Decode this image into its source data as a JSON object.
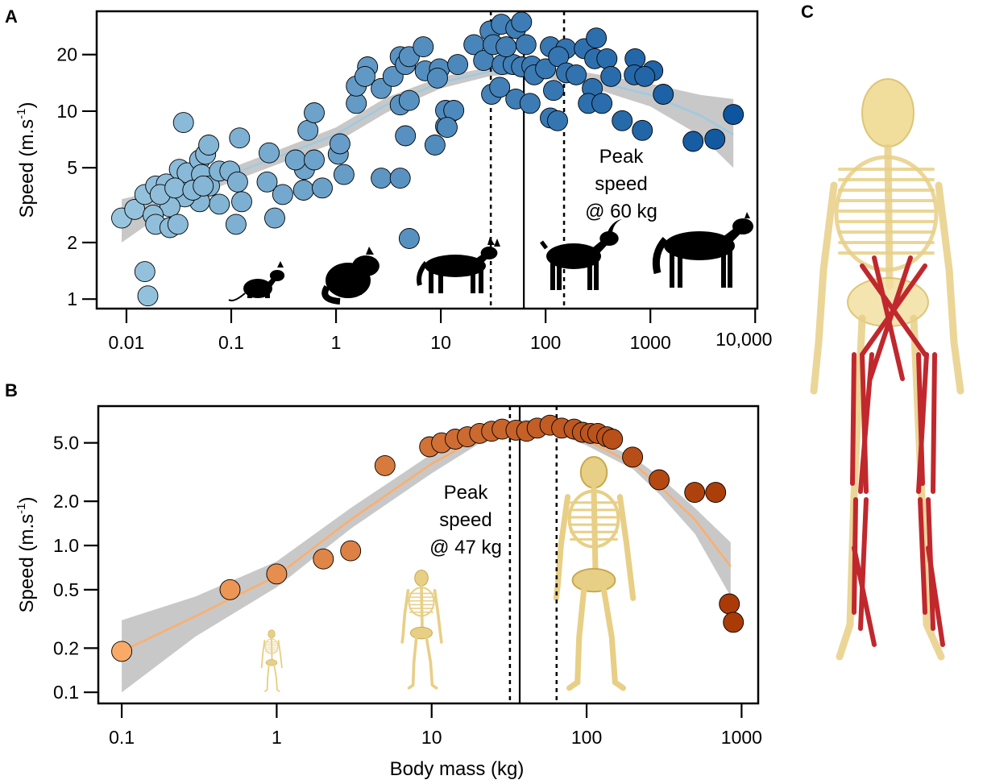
{
  "panel_labels": [
    "A",
    "B",
    "C"
  ],
  "colors": {
    "a_light": "#9ecae1",
    "a_dark": "#08519c",
    "a_fit": "#9ecae1",
    "b_light": "#fdae6b",
    "b_dark": "#a63603",
    "b_fit": "#fdae6b",
    "ci_band": "#c8c8c8",
    "bone": "#e8cf86",
    "muscle": "#c0282d",
    "silhouette": "#000000"
  },
  "chart_data": [
    {
      "panel": "A",
      "type": "scatter",
      "x_scale": "log",
      "y_scale": "log",
      "xlim": [
        0.0052,
        10500
      ],
      "ylim": [
        0.89,
        34
      ],
      "ylabel": "Speed (m.s",
      "ylabel_sup": "-1",
      "ylabel_end": ")",
      "xlabel": "",
      "grid": false,
      "x_ticks": [
        {
          "value": 0.01,
          "label": "0.01"
        },
        {
          "value": 0.1,
          "label": "0.1"
        },
        {
          "value": 1,
          "label": "1"
        },
        {
          "value": 10,
          "label": "10"
        },
        {
          "value": 100,
          "label": "100"
        },
        {
          "value": 1000,
          "label": "1000"
        },
        {
          "value": 10000,
          "label": "10,000"
        }
      ],
      "y_ticks": [
        {
          "value": 1,
          "label": "1"
        },
        {
          "value": 2,
          "label": "2"
        },
        {
          "value": 5,
          "label": "5"
        },
        {
          "value": 10,
          "label": "10"
        },
        {
          "value": 20,
          "label": "20"
        }
      ],
      "vlines": [
        {
          "value": 30,
          "style": "dotted"
        },
        {
          "value": 62,
          "style": "solid"
        },
        {
          "value": 150,
          "style": "dotted"
        }
      ],
      "annotation": [
        "Peak",
        "speed",
        "@ 60 kg"
      ],
      "icons": [
        "rat-silhouette",
        "chinchilla-silhouette",
        "coyote-silhouette",
        "goat-silhouette",
        "horse-silhouette"
      ],
      "fit": [
        [
          0.009,
          2.7
        ],
        [
          0.03,
          3.6
        ],
        [
          0.1,
          4.6
        ],
        [
          0.3,
          5.8
        ],
        [
          1,
          7.5
        ],
        [
          3,
          10.8
        ],
        [
          10,
          14.2
        ],
        [
          30,
          16.3
        ],
        [
          60,
          16.6
        ],
        [
          200,
          15.2
        ],
        [
          1000,
          12.2
        ],
        [
          3000,
          9.5
        ],
        [
          6200,
          7.5
        ]
      ],
      "ci_lower": [
        [
          0.009,
          2.0
        ],
        [
          0.03,
          3.2
        ],
        [
          0.1,
          4.2
        ],
        [
          0.3,
          5.3
        ],
        [
          1,
          6.8
        ],
        [
          3,
          9.8
        ],
        [
          10,
          13.2
        ],
        [
          30,
          15.4
        ],
        [
          60,
          15.7
        ],
        [
          200,
          14.1
        ],
        [
          1000,
          10.6
        ],
        [
          3000,
          7.4
        ],
        [
          6200,
          5.0
        ]
      ],
      "ci_upper": [
        [
          0.009,
          3.4
        ],
        [
          0.03,
          4.0
        ],
        [
          0.1,
          5.0
        ],
        [
          0.3,
          6.3
        ],
        [
          1,
          8.2
        ],
        [
          3,
          11.8
        ],
        [
          10,
          15.2
        ],
        [
          30,
          17.2
        ],
        [
          60,
          17.5
        ],
        [
          200,
          16.4
        ],
        [
          1000,
          14.0
        ],
        [
          3000,
          12.2
        ],
        [
          6200,
          11.6
        ]
      ],
      "points": [
        [
          0.009,
          2.7
        ],
        [
          0.012,
          3.0
        ],
        [
          0.015,
          3.6
        ],
        [
          0.019,
          4.0
        ],
        [
          0.024,
          4.1
        ],
        [
          0.032,
          4.9
        ],
        [
          0.035,
          8.7
        ],
        [
          0.038,
          4.7
        ],
        [
          0.05,
          5.5
        ],
        [
          0.057,
          5.9
        ],
        [
          0.061,
          6.6
        ],
        [
          0.052,
          4.6
        ],
        [
          0.062,
          4.0
        ],
        [
          0.077,
          4.8
        ],
        [
          0.097,
          4.8
        ],
        [
          0.115,
          4.2
        ],
        [
          0.126,
          3.3
        ],
        [
          0.111,
          2.5
        ],
        [
          0.077,
          3.2
        ],
        [
          0.05,
          3.3
        ],
        [
          0.036,
          3.5
        ],
        [
          0.026,
          3.1
        ],
        [
          0.018,
          2.8
        ],
        [
          0.019,
          2.5
        ],
        [
          0.026,
          2.4
        ],
        [
          0.031,
          2.5
        ],
        [
          0.12,
          7.2
        ],
        [
          0.23,
          6.0
        ],
        [
          0.22,
          4.2
        ],
        [
          0.31,
          3.6
        ],
        [
          0.26,
          2.7
        ],
        [
          0.49,
          3.8
        ],
        [
          0.74,
          3.9
        ],
        [
          0.5,
          4.9
        ],
        [
          0.41,
          5.5
        ],
        [
          0.62,
          5.5
        ],
        [
          0.54,
          7.9
        ],
        [
          0.62,
          9.8
        ],
        [
          1.05,
          5.9
        ],
        [
          1.09,
          6.7
        ],
        [
          1.19,
          4.6
        ],
        [
          2.7,
          4.4
        ],
        [
          4.1,
          4.4
        ],
        [
          5.0,
          2.1
        ],
        [
          4.6,
          7.4
        ],
        [
          8.8,
          6.6
        ],
        [
          4.1,
          10.8
        ],
        [
          5.0,
          11.4
        ],
        [
          1.56,
          11.0
        ],
        [
          1.56,
          13.6
        ],
        [
          2.0,
          17.2
        ],
        [
          1.89,
          15.3
        ],
        [
          2.7,
          13.2
        ],
        [
          3.5,
          15.3
        ],
        [
          4.1,
          19.5
        ],
        [
          4.6,
          17.7
        ],
        [
          5.0,
          19.5
        ],
        [
          6.8,
          22
        ],
        [
          7.1,
          16.4
        ],
        [
          9.7,
          16.8
        ],
        [
          9.3,
          15.0
        ],
        [
          12.2,
          9.8
        ],
        [
          11.1,
          8.3
        ],
        [
          0.015,
          1.4
        ],
        [
          0.016,
          1.04
        ],
        [
          0.021,
          3.6
        ],
        [
          0.029,
          3.9
        ],
        [
          0.043,
          3.8
        ],
        [
          0.054,
          4.0
        ],
        [
          14.5,
          17.7
        ],
        [
          20.7,
          22.6
        ],
        [
          25.6,
          18.6
        ],
        [
          29.5,
          26.7
        ],
        [
          37.8,
          29
        ],
        [
          52,
          27.5
        ],
        [
          59,
          29.8
        ],
        [
          31.6,
          22.6
        ],
        [
          38.5,
          17.7
        ],
        [
          49,
          17.7
        ],
        [
          59,
          17.2
        ],
        [
          74,
          17.4
        ],
        [
          65,
          22.6
        ],
        [
          42,
          22
        ],
        [
          30.5,
          12.3
        ],
        [
          36.5,
          13.4
        ],
        [
          52,
          11.6
        ],
        [
          71,
          11.0
        ],
        [
          78,
          15.6
        ],
        [
          100,
          16.8
        ],
        [
          111,
          22
        ],
        [
          156,
          21.5
        ],
        [
          133,
          19.5
        ],
        [
          158,
          16.0
        ],
        [
          119,
          12.9
        ],
        [
          111,
          9.2
        ],
        [
          130,
          8.9
        ],
        [
          196,
          15.6
        ],
        [
          234,
          21.5
        ],
        [
          305,
          24.5
        ],
        [
          294,
          19.0
        ],
        [
          385,
          19.0
        ],
        [
          420,
          15.3
        ],
        [
          279,
          13.2
        ],
        [
          256,
          11.0
        ],
        [
          345,
          11.0
        ],
        [
          714,
          19.0
        ],
        [
          702,
          15.6
        ],
        [
          1054,
          16.4
        ],
        [
          884,
          15.3
        ],
        [
          1327,
          12.3
        ],
        [
          538,
          8.9
        ],
        [
          838,
          7.9
        ],
        [
          2557,
          6.9
        ],
        [
          4121,
          7.1
        ],
        [
          6194,
          9.6
        ],
        [
          11.1,
          10.1
        ],
        [
          13.3,
          10.1
        ],
        [
          11.5,
          8.2
        ]
      ]
    },
    {
      "panel": "B",
      "type": "scatter",
      "x_scale": "log",
      "y_scale": "log",
      "xlim": [
        0.0706,
        1280
      ],
      "ylim": [
        0.084,
        8.9
      ],
      "ylabel": "Speed (m.s",
      "ylabel_sup": "-1",
      "ylabel_end": ")",
      "xlabel": "Body mass (kg)",
      "grid": false,
      "x_ticks": [
        {
          "value": 0.1,
          "label": "0.1"
        },
        {
          "value": 1,
          "label": "1"
        },
        {
          "value": 10,
          "label": "10"
        },
        {
          "value": 100,
          "label": "100"
        },
        {
          "value": 1000,
          "label": "1000"
        }
      ],
      "y_ticks": [
        {
          "value": 0.1,
          "label": "0.1"
        },
        {
          "value": 0.2,
          "label": "0.2"
        },
        {
          "value": 0.5,
          "label": "0.5"
        },
        {
          "value": 1.0,
          "label": "1.0"
        },
        {
          "value": 2.0,
          "label": "2.0"
        },
        {
          "value": 5.0,
          "label": "5.0"
        }
      ],
      "vlines": [
        {
          "value": 32,
          "style": "dotted"
        },
        {
          "value": 37,
          "style": "solid"
        },
        {
          "value": 64,
          "style": "dotted"
        }
      ],
      "annotation": [
        "Peak",
        "speed",
        "@ 47 kg"
      ],
      "icons": [
        "small-skeleton",
        "medium-skeleton",
        "large-skeleton"
      ],
      "fit": [
        [
          0.1,
          0.19
        ],
        [
          0.3,
          0.33
        ],
        [
          1,
          0.62
        ],
        [
          3,
          1.5
        ],
        [
          10,
          3.6
        ],
        [
          20,
          5.4
        ],
        [
          40,
          6.6
        ],
        [
          70,
          6.1
        ],
        [
          100,
          5.2
        ],
        [
          200,
          3.6
        ],
        [
          300,
          2.5
        ],
        [
          500,
          1.5
        ],
        [
          850,
          0.72
        ]
      ],
      "ci_lower": [
        [
          0.1,
          0.1
        ],
        [
          0.3,
          0.24
        ],
        [
          1,
          0.52
        ],
        [
          3,
          1.3
        ],
        [
          10,
          3.1
        ],
        [
          20,
          4.9
        ],
        [
          40,
          6.1
        ],
        [
          70,
          5.6
        ],
        [
          100,
          4.8
        ],
        [
          200,
          3.3
        ],
        [
          300,
          2.2
        ],
        [
          500,
          1.2
        ],
        [
          850,
          0.45
        ]
      ],
      "ci_upper": [
        [
          0.1,
          0.31
        ],
        [
          0.3,
          0.45
        ],
        [
          1,
          0.78
        ],
        [
          3,
          1.8
        ],
        [
          10,
          4.2
        ],
        [
          20,
          5.9
        ],
        [
          40,
          7.2
        ],
        [
          70,
          6.7
        ],
        [
          100,
          5.7
        ],
        [
          200,
          4.0
        ],
        [
          300,
          2.9
        ],
        [
          500,
          1.8
        ],
        [
          850,
          1.05
        ]
      ],
      "points": [
        [
          0.1,
          0.19
        ],
        [
          0.5,
          0.5
        ],
        [
          1.0,
          0.64
        ],
        [
          2.0,
          0.81
        ],
        [
          3.0,
          0.92
        ],
        [
          5.0,
          3.5
        ],
        [
          9.7,
          4.7
        ],
        [
          11.6,
          5.0
        ],
        [
          14.2,
          5.3
        ],
        [
          17,
          5.5
        ],
        [
          20.4,
          5.8
        ],
        [
          24.4,
          6.0
        ],
        [
          28.5,
          6.2
        ],
        [
          35,
          6.1
        ],
        [
          41,
          6.0
        ],
        [
          48,
          6.3
        ],
        [
          58,
          6.6
        ],
        [
          69,
          6.3
        ],
        [
          83,
          6.2
        ],
        [
          94,
          5.9
        ],
        [
          106,
          5.8
        ],
        [
          118,
          5.8
        ],
        [
          135,
          5.5
        ],
        [
          147,
          5.3
        ],
        [
          198,
          4.0
        ],
        [
          294,
          2.8
        ],
        [
          498,
          2.3
        ],
        [
          680,
          2.3
        ],
        [
          834,
          0.4
        ],
        [
          885,
          0.3
        ]
      ]
    }
  ],
  "panel_c": {
    "icon": "musculoskeletal-model"
  }
}
